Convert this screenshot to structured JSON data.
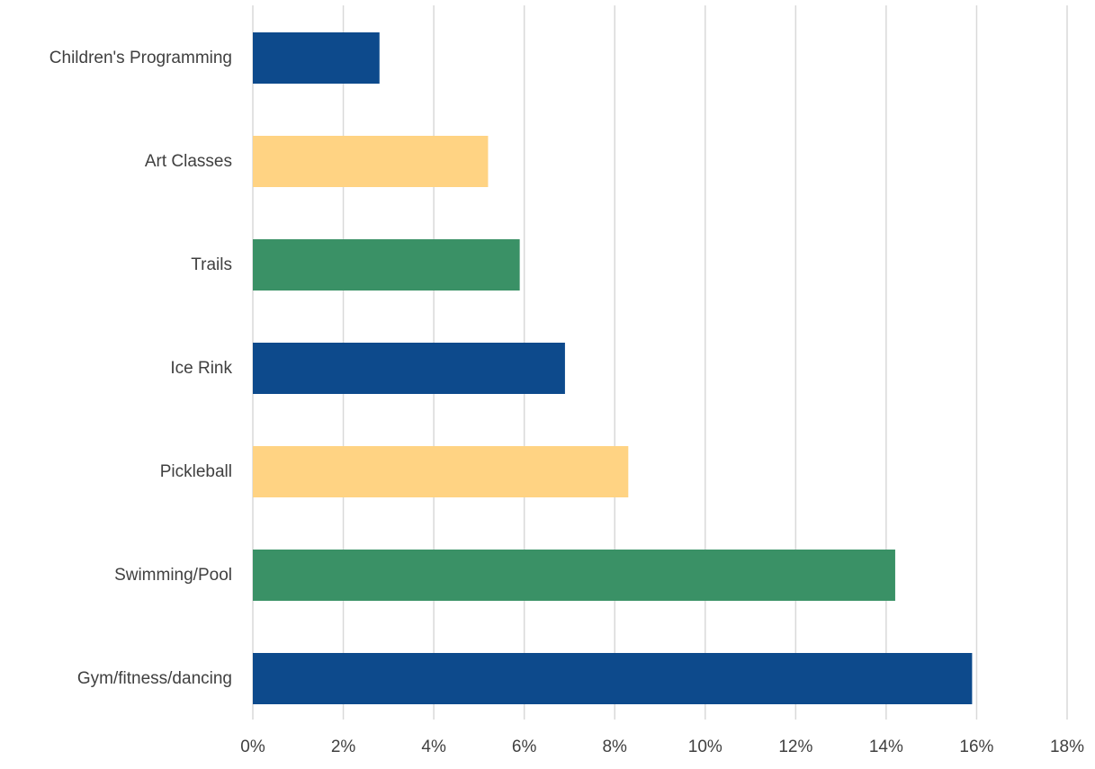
{
  "chart_data": {
    "type": "bar",
    "orientation": "horizontal",
    "categories": [
      "Children's Programming",
      "Art Classes",
      "Trails",
      "Ice Rink",
      "Pickleball",
      "Swimming/Pool",
      "Gym/fitness/dancing"
    ],
    "values": [
      2.8,
      5.2,
      5.9,
      6.9,
      8.3,
      14.2,
      15.9
    ],
    "unit": "%",
    "xlim": [
      0,
      18
    ],
    "x_ticks": [
      0,
      2,
      4,
      6,
      8,
      10,
      12,
      14,
      16,
      18
    ],
    "x_tick_labels": [
      "0%",
      "2%",
      "4%",
      "6%",
      "8%",
      "10%",
      "12%",
      "14%",
      "16%",
      "18%"
    ],
    "bar_colors": [
      "#0d4a8c",
      "#ffd383",
      "#3a9166",
      "#0d4a8c",
      "#ffd383",
      "#3a9166",
      "#0d4a8c"
    ],
    "grid": "vertical",
    "legend": "none",
    "title": "",
    "xlabel": "",
    "ylabel": ""
  }
}
